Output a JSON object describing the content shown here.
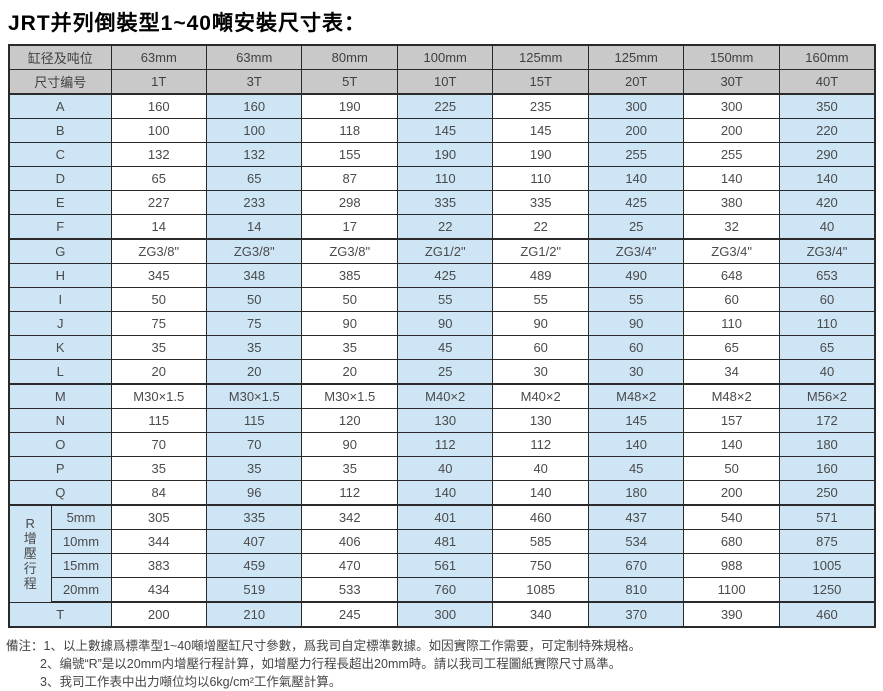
{
  "page_title": "JRT并列倒裝型1~40噸安裝尺寸表：",
  "colors": {
    "header_bg": "#c9c9c9",
    "stripe_blue": "#cee5f6",
    "stripe_white": "#ffffff",
    "border": "#2a2a2a",
    "text": "#4a4a4a"
  },
  "table": {
    "header_row1": {
      "label": "缸径及吨位",
      "values": [
        "63mm",
        "63mm",
        "80mm",
        "100mm",
        "125mm",
        "125mm",
        "150mm",
        "160mm"
      ]
    },
    "header_row2": {
      "label": "尺寸编号",
      "values": [
        "1T",
        "3T",
        "5T",
        "10T",
        "15T",
        "20T",
        "30T",
        "40T"
      ]
    },
    "rows": [
      {
        "label": "A",
        "values": [
          "160",
          "160",
          "190",
          "225",
          "235",
          "300",
          "300",
          "350"
        ]
      },
      {
        "label": "B",
        "values": [
          "100",
          "100",
          "118",
          "145",
          "145",
          "200",
          "200",
          "220"
        ]
      },
      {
        "label": "C",
        "values": [
          "132",
          "132",
          "155",
          "190",
          "190",
          "255",
          "255",
          "290"
        ]
      },
      {
        "label": "D",
        "values": [
          "65",
          "65",
          "87",
          "110",
          "110",
          "140",
          "140",
          "140"
        ]
      },
      {
        "label": "E",
        "values": [
          "227",
          "233",
          "298",
          "335",
          "335",
          "425",
          "380",
          "420"
        ]
      },
      {
        "label": "F",
        "values": [
          "14",
          "14",
          "17",
          "22",
          "22",
          "25",
          "32",
          "40"
        ],
        "block_end": true
      },
      {
        "label": "G",
        "values": [
          "ZG3/8\"",
          "ZG3/8\"",
          "ZG3/8\"",
          "ZG1/2\"",
          "ZG1/2\"",
          "ZG3/4\"",
          "ZG3/4\"",
          "ZG3/4\""
        ]
      },
      {
        "label": "H",
        "values": [
          "345",
          "348",
          "385",
          "425",
          "489",
          "490",
          "648",
          "653"
        ]
      },
      {
        "label": "I",
        "values": [
          "50",
          "50",
          "50",
          "55",
          "55",
          "55",
          "60",
          "60"
        ]
      },
      {
        "label": "J",
        "values": [
          "75",
          "75",
          "90",
          "90",
          "90",
          "90",
          "110",
          "110"
        ]
      },
      {
        "label": "K",
        "values": [
          "35",
          "35",
          "35",
          "45",
          "60",
          "60",
          "65",
          "65"
        ]
      },
      {
        "label": "L",
        "values": [
          "20",
          "20",
          "20",
          "25",
          "30",
          "30",
          "34",
          "40"
        ],
        "block_end": true
      },
      {
        "label": "M",
        "values": [
          "M30×1.5",
          "M30×1.5",
          "M30×1.5",
          "M40×2",
          "M40×2",
          "M48×2",
          "M48×2",
          "M56×2"
        ]
      },
      {
        "label": "N",
        "values": [
          "115",
          "115",
          "120",
          "130",
          "130",
          "145",
          "157",
          "172"
        ]
      },
      {
        "label": "O",
        "values": [
          "70",
          "70",
          "90",
          "112",
          "112",
          "140",
          "140",
          "180"
        ]
      },
      {
        "label": "P",
        "values": [
          "35",
          "35",
          "35",
          "40",
          "40",
          "45",
          "50",
          "160"
        ]
      },
      {
        "label": "Q",
        "values": [
          "84",
          "96",
          "112",
          "140",
          "140",
          "180",
          "200",
          "250"
        ],
        "block_end": true
      }
    ],
    "r_section": {
      "main_label": "R",
      "sub_label_chars": [
        "增",
        "壓",
        "行",
        "程"
      ],
      "subrows": [
        {
          "label": "5mm",
          "values": [
            "305",
            "335",
            "342",
            "401",
            "460",
            "437",
            "540",
            "571"
          ]
        },
        {
          "label": "10mm",
          "values": [
            "344",
            "407",
            "406",
            "481",
            "585",
            "534",
            "680",
            "875"
          ]
        },
        {
          "label": "15mm",
          "values": [
            "383",
            "459",
            "470",
            "561",
            "750",
            "670",
            "988",
            "1005"
          ]
        },
        {
          "label": "20mm",
          "values": [
            "434",
            "519",
            "533",
            "760",
            "1085",
            "810",
            "1100",
            "1250"
          ],
          "block_end": true
        }
      ]
    },
    "t_row": {
      "label": "T",
      "values": [
        "200",
        "210",
        "245",
        "300",
        "340",
        "370",
        "390",
        "460"
      ]
    }
  },
  "notes": {
    "prefix": "備注：",
    "line1": "1、以上數據爲標準型1~40噸增壓缸尺寸參數，爲我司自定標準數據。如因實際工作需要，可定制特殊規格。",
    "line2": "2、编號“R”是以20mm内增壓行程計算，如增壓力行程長超出20mm時。請以我司工程圖紙實際尺寸爲準。",
    "line3": "3、我司工作表中出力噸位均以6kg/cm²工作氣壓計算。"
  }
}
